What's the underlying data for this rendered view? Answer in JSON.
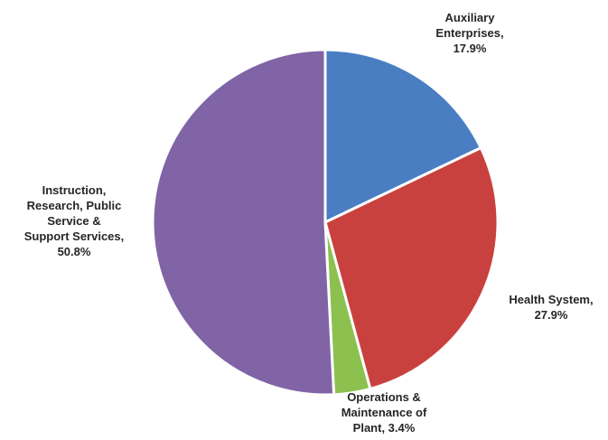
{
  "chart_data": {
    "type": "pie",
    "title": "",
    "slices": [
      {
        "name": "Auxiliary Enterprises",
        "value": 17.9,
        "label_lines": [
          "Auxiliary",
          "Enterprises,",
          "17.9%"
        ],
        "color": "#4a7ec2"
      },
      {
        "name": "Health System",
        "value": 27.9,
        "label_lines": [
          "Health System,",
          "27.9%"
        ],
        "color": "#c9413e"
      },
      {
        "name": "Operations & Maintenance of Plant",
        "value": 3.4,
        "label_lines": [
          "Operations &",
          "Maintenance of",
          "Plant, 3.4%"
        ],
        "color": "#8cc04f"
      },
      {
        "name": "Instruction, Research, Public Service & Support Services",
        "value": 50.8,
        "label_lines": [
          "Instruction,",
          "Research, Public",
          "Service &",
          "Support Services,",
          "50.8%"
        ],
        "color": "#8064a6"
      }
    ],
    "start_angle": "12 o'clock",
    "direction": "clockwise",
    "legend": "none",
    "label_placement": "outside"
  }
}
